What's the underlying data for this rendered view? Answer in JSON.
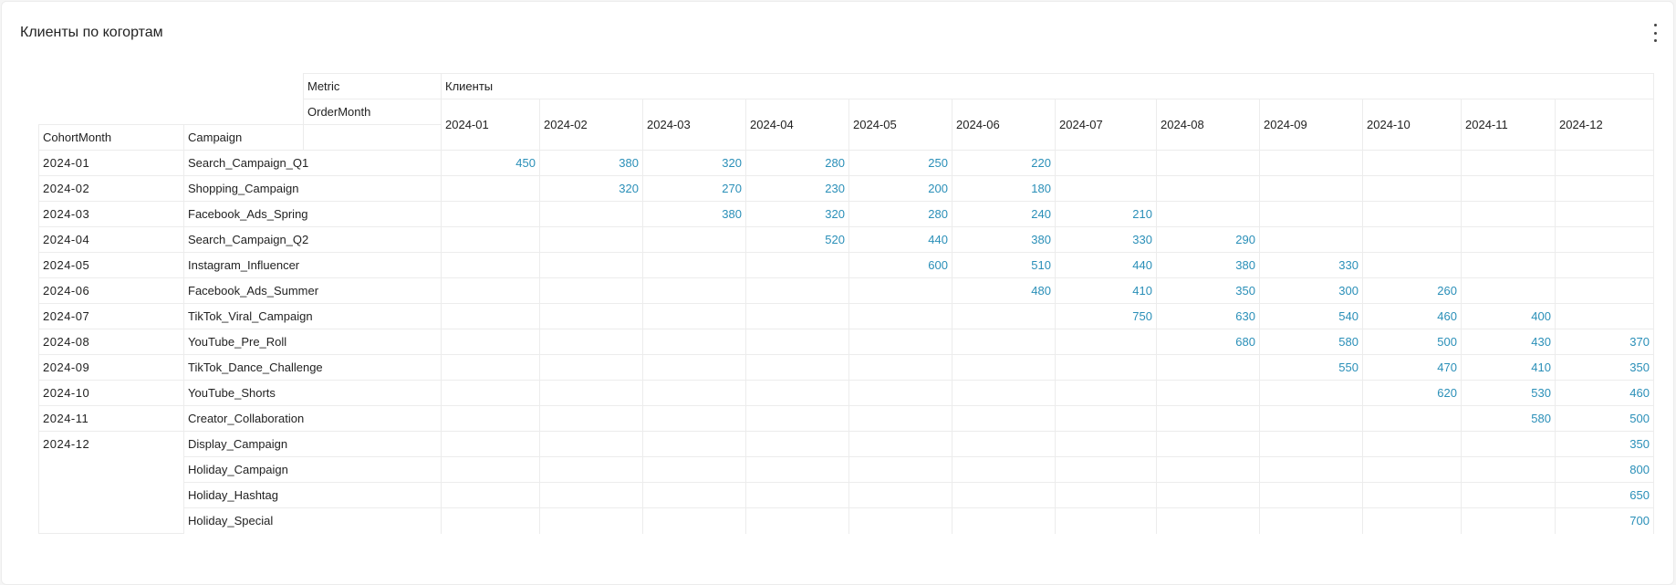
{
  "panel": {
    "title": "Клиенты по когортам"
  },
  "header": {
    "metric_label": "Metric",
    "metric_value": "Клиенты",
    "ordermonth_label": "OrderMonth",
    "cohort_label": "CohortMonth",
    "campaign_label": "Campaign",
    "months": [
      "2024-01",
      "2024-02",
      "2024-03",
      "2024-04",
      "2024-05",
      "2024-06",
      "2024-07",
      "2024-08",
      "2024-09",
      "2024-10",
      "2024-11",
      "2024-12"
    ]
  },
  "rows": [
    {
      "cohort": "2024-01",
      "campaign": "Search_Campaign_Q1",
      "values": [
        "450",
        "380",
        "320",
        "280",
        "250",
        "220",
        "",
        "",
        "",
        "",
        "",
        ""
      ]
    },
    {
      "cohort": "2024-02",
      "campaign": "Shopping_Campaign",
      "values": [
        "",
        "320",
        "270",
        "230",
        "200",
        "180",
        "",
        "",
        "",
        "",
        "",
        ""
      ]
    },
    {
      "cohort": "2024-03",
      "campaign": "Facebook_Ads_Spring",
      "values": [
        "",
        "",
        "380",
        "320",
        "280",
        "240",
        "210",
        "",
        "",
        "",
        "",
        ""
      ]
    },
    {
      "cohort": "2024-04",
      "campaign": "Search_Campaign_Q2",
      "values": [
        "",
        "",
        "",
        "520",
        "440",
        "380",
        "330",
        "290",
        "",
        "",
        "",
        ""
      ]
    },
    {
      "cohort": "2024-05",
      "campaign": "Instagram_Influencer",
      "values": [
        "",
        "",
        "",
        "",
        "600",
        "510",
        "440",
        "380",
        "330",
        "",
        "",
        ""
      ]
    },
    {
      "cohort": "2024-06",
      "campaign": "Facebook_Ads_Summer",
      "values": [
        "",
        "",
        "",
        "",
        "",
        "480",
        "410",
        "350",
        "300",
        "260",
        "",
        ""
      ]
    },
    {
      "cohort": "2024-07",
      "campaign": "TikTok_Viral_Campaign",
      "values": [
        "",
        "",
        "",
        "",
        "",
        "",
        "750",
        "630",
        "540",
        "460",
        "400",
        ""
      ]
    },
    {
      "cohort": "2024-08",
      "campaign": "YouTube_Pre_Roll",
      "values": [
        "",
        "",
        "",
        "",
        "",
        "",
        "",
        "680",
        "580",
        "500",
        "430",
        "370"
      ]
    },
    {
      "cohort": "2024-09",
      "campaign": "TikTok_Dance_Challenge",
      "values": [
        "",
        "",
        "",
        "",
        "",
        "",
        "",
        "",
        "550",
        "470",
        "410",
        "350"
      ]
    },
    {
      "cohort": "2024-10",
      "campaign": "YouTube_Shorts",
      "values": [
        "",
        "",
        "",
        "",
        "",
        "",
        "",
        "",
        "",
        "620",
        "530",
        "460"
      ]
    },
    {
      "cohort": "2024-11",
      "campaign": "Creator_Collaboration",
      "values": [
        "",
        "",
        "",
        "",
        "",
        "",
        "",
        "",
        "",
        "",
        "580",
        "500"
      ]
    },
    {
      "cohort": "2024-12",
      "campaign": "Display_Campaign",
      "values": [
        "",
        "",
        "",
        "",
        "",
        "",
        "",
        "",
        "",
        "",
        "",
        "350"
      ]
    },
    {
      "cohort": "",
      "campaign": "Holiday_Campaign",
      "values": [
        "",
        "",
        "",
        "",
        "",
        "",
        "",
        "",
        "",
        "",
        "",
        "800"
      ]
    },
    {
      "cohort": "",
      "campaign": "Holiday_Hashtag",
      "values": [
        "",
        "",
        "",
        "",
        "",
        "",
        "",
        "",
        "",
        "",
        "",
        "650"
      ]
    },
    {
      "cohort": "",
      "campaign": "Holiday_Special",
      "values": [
        "",
        "",
        "",
        "",
        "",
        "",
        "",
        "",
        "",
        "",
        "",
        "700"
      ]
    }
  ]
}
